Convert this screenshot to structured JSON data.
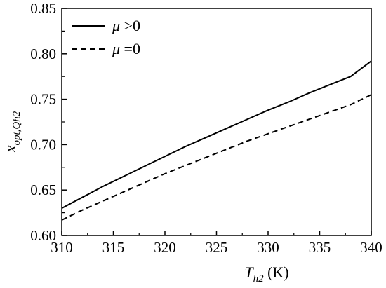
{
  "chart_data": {
    "type": "line",
    "x": [
      310,
      312,
      314,
      316,
      318,
      320,
      322,
      324,
      326,
      328,
      330,
      332,
      334,
      336,
      338,
      340
    ],
    "series": [
      {
        "name": "μ>0",
        "style": "solid",
        "color": "#000000",
        "values": [
          0.63,
          0.642,
          0.654,
          0.665,
          0.676,
          0.687,
          0.698,
          0.708,
          0.718,
          0.728,
          0.738,
          0.747,
          0.757,
          0.766,
          0.775,
          0.792
        ]
      },
      {
        "name": "μ=0",
        "style": "dashed",
        "color": "#000000",
        "values": [
          0.617,
          0.628,
          0.638,
          0.648,
          0.658,
          0.668,
          0.677,
          0.686,
          0.695,
          0.704,
          0.712,
          0.72,
          0.728,
          0.736,
          0.744,
          0.755
        ]
      }
    ],
    "xlim": [
      310,
      340
    ],
    "ylim": [
      0.6,
      0.85
    ],
    "xticks": [
      "310",
      "315",
      "320",
      "325",
      "330",
      "335",
      "340"
    ],
    "yticks": [
      "0.60",
      "0.65",
      "0.70",
      "0.75",
      "0.80",
      "0.85"
    ],
    "xlabel": {
      "main": "T",
      "sub": "h2",
      "unit": " (K)"
    },
    "ylabel": {
      "main": "x",
      "sub": "opt,Qh2"
    },
    "legend": {
      "position": "top-left",
      "entries": [
        {
          "symbol": "μ",
          "rest": " >0"
        },
        {
          "symbol": "μ",
          "rest": " =0"
        }
      ]
    },
    "grid": false
  }
}
